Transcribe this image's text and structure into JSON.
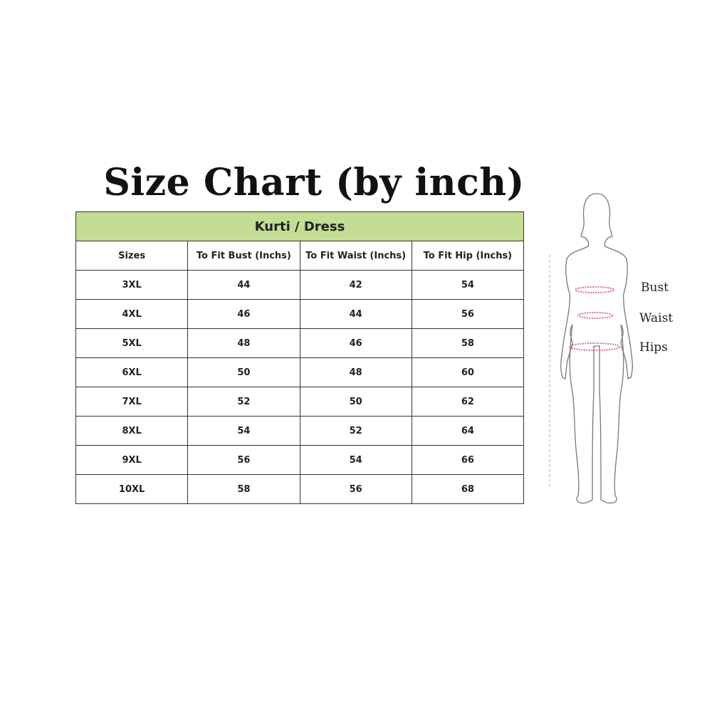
{
  "title": "Size Chart (by inch)",
  "table": {
    "group_header": "Kurti / Dress",
    "header_color": "#c4dc94",
    "columns": [
      "Sizes",
      "To Fit Bust (Inchs)",
      "To Fit Waist (Inchs)",
      "To Fit Hip (Inchs)"
    ],
    "rows": [
      [
        "3XL",
        "44",
        "42",
        "54"
      ],
      [
        "4XL",
        "46",
        "44",
        "56"
      ],
      [
        "5XL",
        "48",
        "46",
        "58"
      ],
      [
        "6XL",
        "50",
        "48",
        "60"
      ],
      [
        "7XL",
        "52",
        "50",
        "62"
      ],
      [
        "8XL",
        "54",
        "52",
        "64"
      ],
      [
        "9XL",
        "56",
        "54",
        "66"
      ],
      [
        "10XL",
        "58",
        "56",
        "68"
      ]
    ]
  },
  "figure": {
    "labels": [
      "Bust",
      "Waist",
      "Hips"
    ],
    "measure_color": "#d0709a"
  }
}
